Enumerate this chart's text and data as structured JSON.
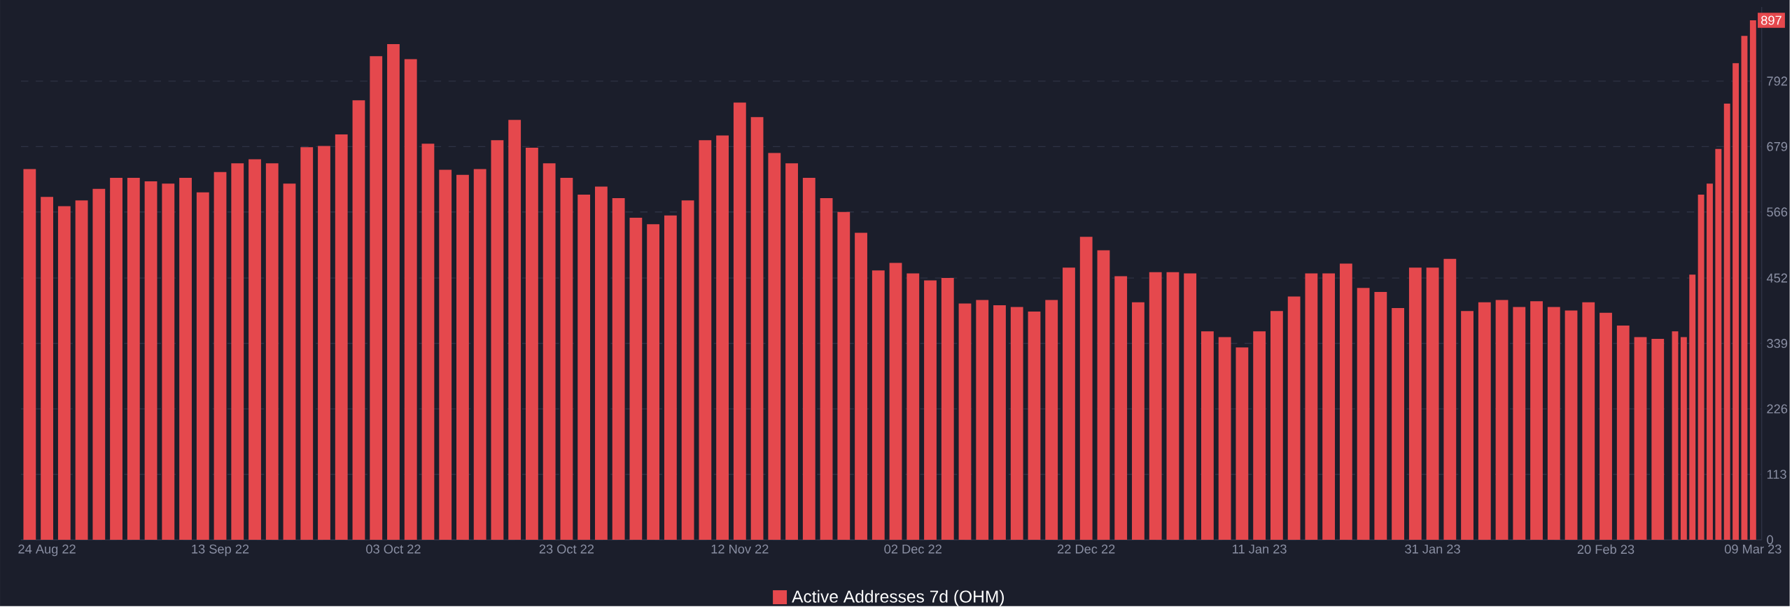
{
  "chart_data": {
    "type": "bar",
    "x": [
      "2022-08-22",
      "2022-08-24",
      "2022-08-26",
      "2022-08-28",
      "2022-08-30",
      "2022-09-01",
      "2022-09-03",
      "2022-09-05",
      "2022-09-07",
      "2022-09-09",
      "2022-09-11",
      "2022-09-13",
      "2022-09-15",
      "2022-09-17",
      "2022-09-19",
      "2022-09-21",
      "2022-09-23",
      "2022-09-25",
      "2022-09-27",
      "2022-09-29",
      "2022-10-01",
      "2022-10-03",
      "2022-10-05",
      "2022-10-07",
      "2022-10-09",
      "2022-10-11",
      "2022-10-13",
      "2022-10-15",
      "2022-10-17",
      "2022-10-19",
      "2022-10-21",
      "2022-10-23",
      "2022-10-25",
      "2022-10-27",
      "2022-10-29",
      "2022-10-31",
      "2022-11-02",
      "2022-11-04",
      "2022-11-06",
      "2022-11-08",
      "2022-11-10",
      "2022-11-12",
      "2022-11-14",
      "2022-11-16",
      "2022-11-18",
      "2022-11-20",
      "2022-11-22",
      "2022-11-24",
      "2022-11-26",
      "2022-11-28",
      "2022-11-30",
      "2022-12-02",
      "2022-12-04",
      "2022-12-06",
      "2022-12-08",
      "2022-12-10",
      "2022-12-12",
      "2022-12-14",
      "2022-12-16",
      "2022-12-18",
      "2022-12-20",
      "2022-12-22",
      "2022-12-24",
      "2022-12-26",
      "2022-12-28",
      "2022-12-30",
      "2023-01-01",
      "2023-01-03",
      "2023-01-05",
      "2023-01-07",
      "2023-01-09",
      "2023-01-11",
      "2023-01-13",
      "2023-01-15",
      "2023-01-17",
      "2023-01-19",
      "2023-01-21",
      "2023-01-23",
      "2023-01-25",
      "2023-01-27",
      "2023-01-29",
      "2023-01-31",
      "2023-02-02",
      "2023-02-04",
      "2023-02-06",
      "2023-02-08",
      "2023-02-10",
      "2023-02-12",
      "2023-02-14",
      "2023-02-16",
      "2023-02-18",
      "2023-02-20",
      "2023-02-22",
      "2023-02-24",
      "2023-02-26",
      "2023-02-28",
      "2023-03-01",
      "2023-03-02",
      "2023-03-03",
      "2023-03-04",
      "2023-03-05",
      "2023-03-06",
      "2023-03-07",
      "2023-03-08",
      "2023-03-09"
    ],
    "series": [
      {
        "name": "Active Addresses 7d (OHM)",
        "color": "#e5484d",
        "values": [
          640,
          592,
          576,
          586,
          606,
          625,
          625,
          619,
          615,
          625,
          600,
          635,
          650,
          657,
          650,
          615,
          678,
          680,
          700,
          759,
          835,
          856,
          830,
          684,
          639,
          630,
          640,
          690,
          725,
          677,
          650,
          625,
          596,
          610,
          590,
          556,
          545,
          560,
          586,
          690,
          698,
          755,
          730,
          668,
          650,
          625,
          590,
          566,
          530,
          465,
          478,
          460,
          448,
          452,
          408,
          414,
          405,
          402,
          394,
          414,
          470,
          523,
          500,
          455,
          410,
          462,
          462,
          460,
          360,
          350,
          332,
          360,
          395,
          420,
          460,
          460,
          477,
          435,
          428,
          400,
          470,
          470,
          485,
          395,
          410,
          414,
          402,
          412,
          402,
          396,
          410,
          392,
          370,
          350,
          347,
          360,
          350,
          458,
          596,
          615,
          675,
          753,
          823,
          870,
          897
        ]
      }
    ],
    "annotations": [
      {
        "text": "897",
        "x": "2023-03-09",
        "y": 897
      }
    ],
    "xlim": [
      "2022-08-21",
      "2023-03-10"
    ],
    "xticks": [
      {
        "value": "2022-08-24",
        "label": "24 Aug 22"
      },
      {
        "value": "2022-09-13",
        "label": "13 Sep 22"
      },
      {
        "value": "2022-10-03",
        "label": "03 Oct 22"
      },
      {
        "value": "2022-10-23",
        "label": "23 Oct 22"
      },
      {
        "value": "2022-11-12",
        "label": "12 Nov 22"
      },
      {
        "value": "2022-12-02",
        "label": "02 Dec 22"
      },
      {
        "value": "2022-12-22",
        "label": "22 Dec 22"
      },
      {
        "value": "2023-01-11",
        "label": "11 Jan 23"
      },
      {
        "value": "2023-01-31",
        "label": "31 Jan 23"
      },
      {
        "value": "2023-02-20",
        "label": "20 Feb 23"
      },
      {
        "value": "2023-03-09",
        "label": "09 Mar 23"
      }
    ],
    "ylim": [
      0,
      920
    ],
    "yticks": [
      0,
      113,
      226,
      339,
      452,
      566,
      679,
      792
    ],
    "grid": "y",
    "legend": "bottom"
  }
}
